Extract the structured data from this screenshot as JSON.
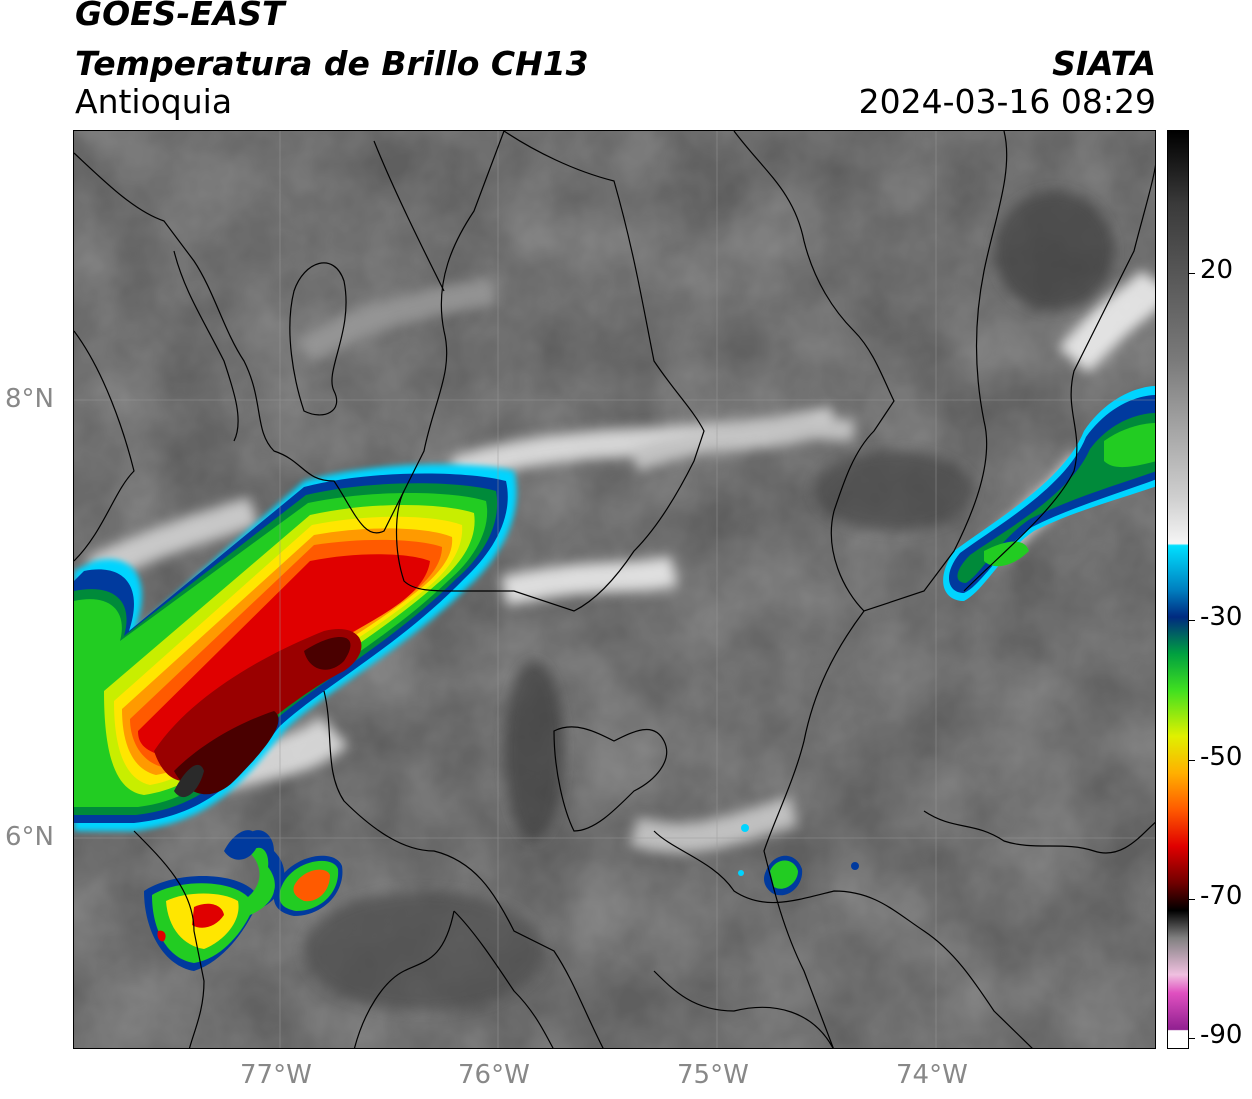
{
  "header": {
    "satellite": "GOES-EAST",
    "product": "Temperatura de Brillo CH13",
    "region": "Antioquia",
    "agency": "SIATA",
    "timestamp": "2024-03-16 08:29"
  },
  "axes": {
    "lat_labels": [
      "8°N",
      "6°N"
    ],
    "lon_labels": [
      "77°W",
      "76°W",
      "75°W",
      "74°W"
    ]
  },
  "colorbar": {
    "ticks": [
      "20",
      "-30",
      "-50",
      "-70",
      "-90"
    ]
  },
  "colors": {
    "cloud_low": "#5e5e5e",
    "cloud_white": "#f2f2f2",
    "cyan": "#00d4ff",
    "blue": "#003a9e",
    "green": "#22cc22",
    "yellow": "#ffe600",
    "orange": "#ff8000",
    "red": "#e00000",
    "darkred": "#4a0000",
    "magenta": "#c040c0"
  }
}
